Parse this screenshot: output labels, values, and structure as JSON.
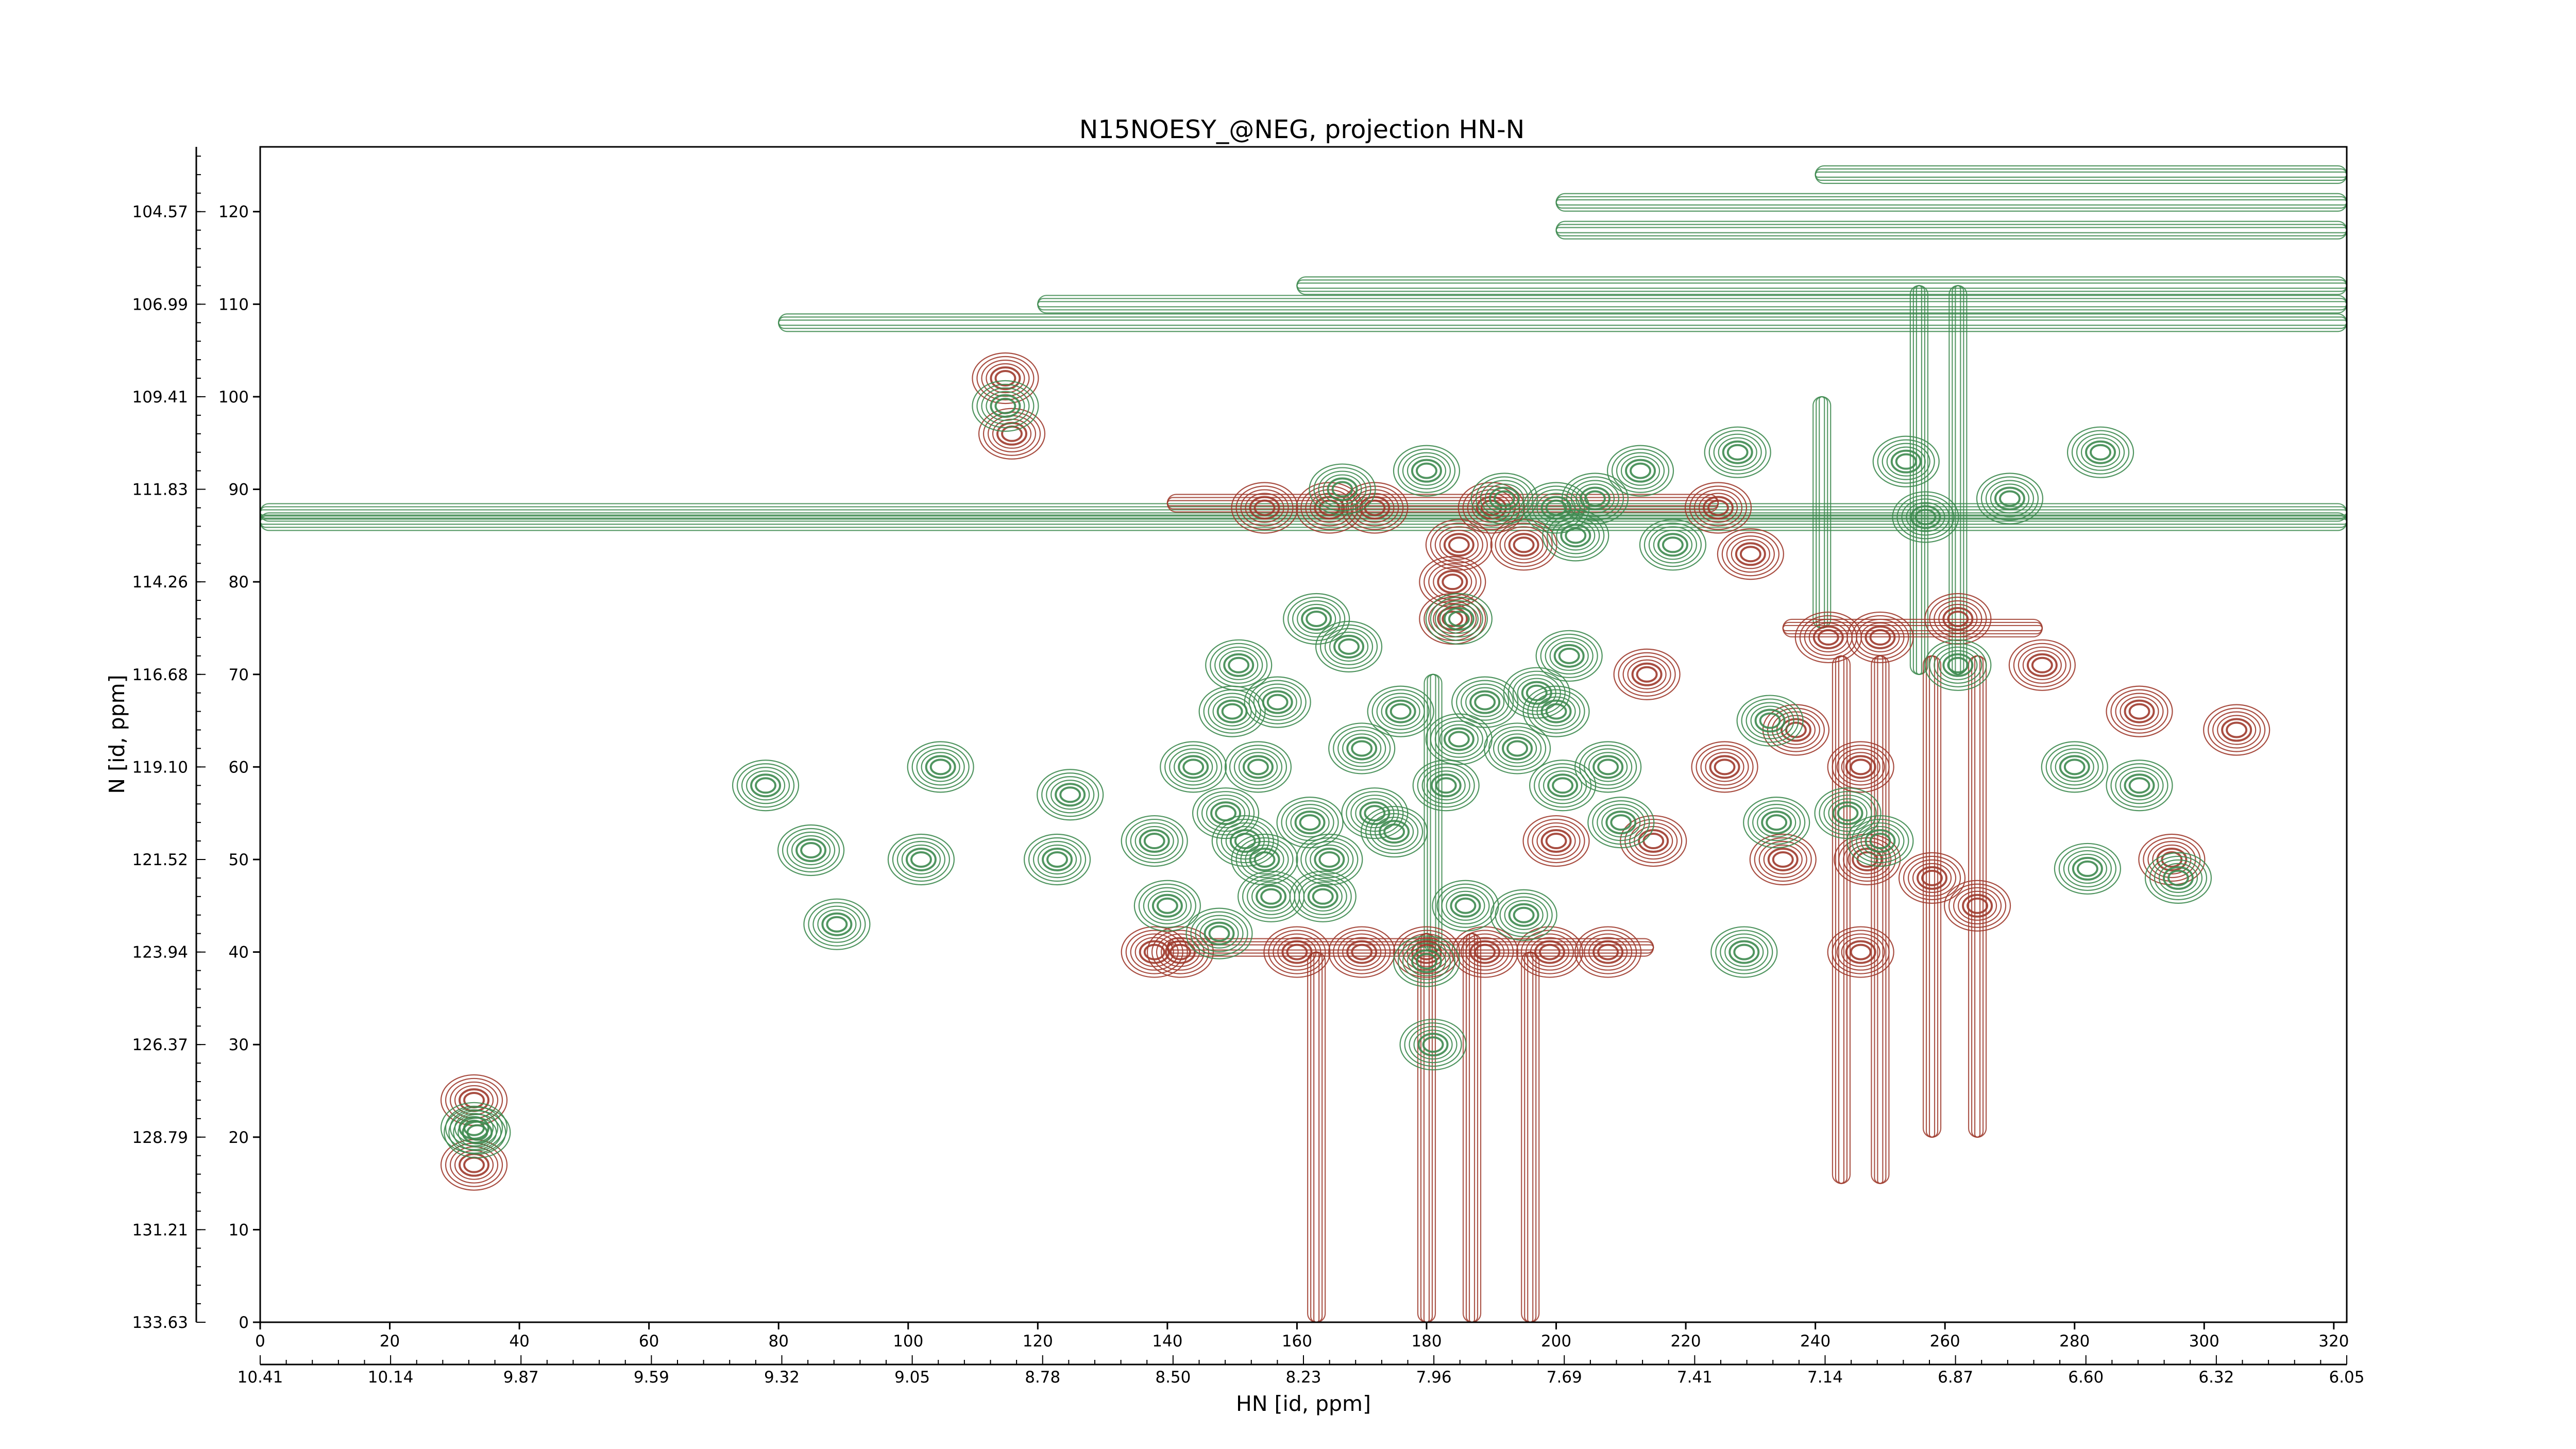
{
  "chart_data": {
    "type": "contour",
    "title": "N15NOESY_@NEG, projection HN-N",
    "xlabel": "HN [id, ppm]",
    "ylabel": "N [id, ppm]",
    "x_index_range": [
      0,
      322
    ],
    "y_index_range": [
      0,
      127
    ],
    "x_index_ticks": [
      "0",
      "20",
      "40",
      "60",
      "80",
      "100",
      "120",
      "140",
      "160",
      "180",
      "200",
      "220",
      "240",
      "260",
      "280",
      "300",
      "320"
    ],
    "y_index_ticks": [
      "0",
      "10",
      "20",
      "30",
      "40",
      "50",
      "60",
      "70",
      "80",
      "90",
      "100",
      "110",
      "120"
    ],
    "x_ppm_ticks": [
      "10.41",
      "10.14",
      "9.87",
      "9.59",
      "9.32",
      "9.05",
      "8.78",
      "8.50",
      "8.23",
      "7.96",
      "7.69",
      "7.41",
      "7.14",
      "6.87",
      "6.60",
      "6.32",
      "6.05"
    ],
    "y_ppm_ticks": [
      "133.63",
      "131.21",
      "128.79",
      "126.37",
      "123.94",
      "121.52",
      "119.10",
      "116.68",
      "114.26",
      "111.83",
      "109.41",
      "106.99",
      "104.57"
    ],
    "colors": {
      "positive": "#3d8a4f",
      "negative": "#9e3a2c"
    },
    "positive_peaks": [
      [
        33,
        21
      ],
      [
        33.5,
        20.5
      ],
      [
        78,
        58
      ],
      [
        85,
        51
      ],
      [
        89,
        43
      ],
      [
        102,
        50
      ],
      [
        105,
        60
      ],
      [
        115,
        99
      ],
      [
        123,
        50
      ],
      [
        125,
        57
      ],
      [
        138,
        52
      ],
      [
        140,
        45
      ],
      [
        144,
        60
      ],
      [
        148,
        42
      ],
      [
        149,
        55
      ],
      [
        150,
        66
      ],
      [
        151,
        71
      ],
      [
        152,
        52
      ],
      [
        154,
        60
      ],
      [
        155,
        50
      ],
      [
        156,
        46
      ],
      [
        157,
        67
      ],
      [
        162,
        54
      ],
      [
        163,
        76
      ],
      [
        164,
        46
      ],
      [
        165,
        50
      ],
      [
        167,
        90
      ],
      [
        168,
        73
      ],
      [
        170,
        62
      ],
      [
        172,
        55
      ],
      [
        175,
        53
      ],
      [
        176,
        66
      ],
      [
        180,
        92
      ],
      [
        180,
        39
      ],
      [
        181,
        30
      ],
      [
        183,
        58
      ],
      [
        185,
        76
      ],
      [
        185,
        63
      ],
      [
        189,
        67
      ],
      [
        192,
        89
      ],
      [
        194,
        62
      ],
      [
        197,
        68
      ],
      [
        200,
        88
      ],
      [
        200,
        66
      ],
      [
        201,
        58
      ],
      [
        202,
        72
      ],
      [
        203,
        85
      ],
      [
        206,
        89
      ],
      [
        208,
        60
      ],
      [
        210,
        54
      ],
      [
        213,
        92
      ],
      [
        218,
        84
      ],
      [
        228,
        94
      ],
      [
        233,
        65
      ],
      [
        254,
        93
      ],
      [
        257,
        87
      ],
      [
        270,
        89
      ],
      [
        284,
        94
      ],
      [
        282,
        49
      ],
      [
        296,
        48
      ],
      [
        186,
        45
      ],
      [
        195,
        44
      ],
      [
        229,
        40
      ],
      [
        262,
        71
      ],
      [
        245,
        55
      ],
      [
        250,
        52
      ],
      [
        234,
        54
      ],
      [
        280,
        60
      ],
      [
        290,
        58
      ]
    ],
    "negative_peaks": [
      [
        33,
        24
      ],
      [
        33,
        17
      ],
      [
        115,
        102
      ],
      [
        116,
        96
      ],
      [
        138,
        40
      ],
      [
        142,
        40
      ],
      [
        155,
        88
      ],
      [
        165,
        88
      ],
      [
        172,
        88
      ],
      [
        185,
        84
      ],
      [
        184,
        80
      ],
      [
        184,
        76
      ],
      [
        190,
        88
      ],
      [
        195,
        84
      ],
      [
        200,
        52
      ],
      [
        215,
        52
      ],
      [
        225,
        88
      ],
      [
        230,
        83
      ],
      [
        242,
        74
      ],
      [
        250,
        74
      ],
      [
        262,
        76
      ],
      [
        247,
        60
      ],
      [
        235,
        50
      ],
      [
        248,
        50
      ],
      [
        258,
        48
      ],
      [
        290,
        66
      ],
      [
        305,
        64
      ],
      [
        295,
        50
      ],
      [
        180,
        40
      ],
      [
        189,
        40
      ],
      [
        199,
        40
      ],
      [
        208,
        40
      ],
      [
        170,
        40
      ],
      [
        160,
        40
      ],
      [
        247,
        40
      ],
      [
        265,
        45
      ],
      [
        226,
        60
      ],
      [
        214,
        70
      ],
      [
        275,
        71
      ],
      [
        237,
        64
      ]
    ],
    "stripes": [
      {
        "color": "positive",
        "orientation": "h",
        "at": 87.5,
        "from": 0,
        "to": 322
      },
      {
        "color": "positive",
        "orientation": "h",
        "at": 86.5,
        "from": 0,
        "to": 322
      },
      {
        "color": "positive",
        "orientation": "h",
        "at": 108,
        "from": 80,
        "to": 322
      },
      {
        "color": "positive",
        "orientation": "h",
        "at": 110,
        "from": 120,
        "to": 322
      },
      {
        "color": "positive",
        "orientation": "h",
        "at": 112,
        "from": 160,
        "to": 322
      },
      {
        "color": "positive",
        "orientation": "h",
        "at": 118,
        "from": 200,
        "to": 322
      },
      {
        "color": "positive",
        "orientation": "h",
        "at": 121,
        "from": 200,
        "to": 322
      },
      {
        "color": "positive",
        "orientation": "h",
        "at": 124,
        "from": 240,
        "to": 322
      },
      {
        "color": "positive",
        "orientation": "v",
        "at": 256,
        "from": 70,
        "to": 112
      },
      {
        "color": "positive",
        "orientation": "v",
        "at": 262,
        "from": 70,
        "to": 112
      },
      {
        "color": "positive",
        "orientation": "v",
        "at": 241,
        "from": 75,
        "to": 100
      },
      {
        "color": "positive",
        "orientation": "v",
        "at": 181,
        "from": 40,
        "to": 70
      },
      {
        "color": "negative",
        "orientation": "h",
        "at": 40.5,
        "from": 140,
        "to": 215
      },
      {
        "color": "negative",
        "orientation": "h",
        "at": 75,
        "from": 235,
        "to": 275
      },
      {
        "color": "negative",
        "orientation": "h",
        "at": 88.5,
        "from": 140,
        "to": 225
      },
      {
        "color": "negative",
        "orientation": "v",
        "at": 180,
        "from": 0,
        "to": 42
      },
      {
        "color": "negative",
        "orientation": "v",
        "at": 187,
        "from": 0,
        "to": 42
      },
      {
        "color": "negative",
        "orientation": "v",
        "at": 196,
        "from": 0,
        "to": 40
      },
      {
        "color": "negative",
        "orientation": "v",
        "at": 244,
        "from": 15,
        "to": 72
      },
      {
        "color": "negative",
        "orientation": "v",
        "at": 250,
        "from": 15,
        "to": 72
      },
      {
        "color": "negative",
        "orientation": "v",
        "at": 258,
        "from": 20,
        "to": 72
      },
      {
        "color": "negative",
        "orientation": "v",
        "at": 265,
        "from": 20,
        "to": 72
      },
      {
        "color": "negative",
        "orientation": "v",
        "at": 163,
        "from": 0,
        "to": 40
      }
    ]
  }
}
